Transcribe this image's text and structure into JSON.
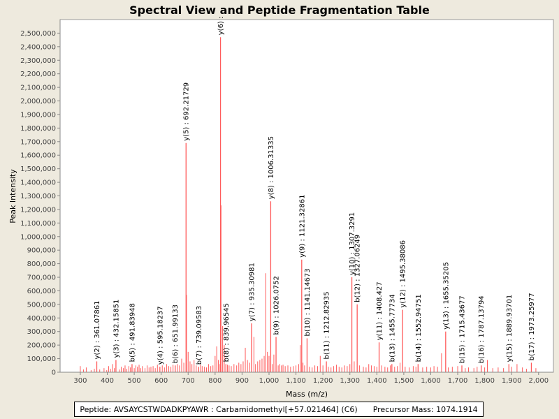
{
  "chart_data": {
    "type": "bar",
    "title": "Spectral View and Peptide Fragmentation Table",
    "xlabel": "Mass (m/z)",
    "ylabel": "Peak Intensity",
    "xlim": [
      225,
      2055
    ],
    "ylim": [
      0,
      2600000
    ],
    "x_ticks": [
      "300",
      "400",
      "500",
      "600",
      "700",
      "800",
      "900",
      "1,000",
      "1,100",
      "1,200",
      "1,300",
      "1,400",
      "1,500",
      "1,600",
      "1,700",
      "1,800",
      "1,900",
      "2,000"
    ],
    "x_tick_values": [
      300,
      400,
      500,
      600,
      700,
      800,
      900,
      1000,
      1100,
      1200,
      1300,
      1400,
      1500,
      1600,
      1700,
      1800,
      1900,
      2000
    ],
    "y_ticks": [
      "0",
      "100,000",
      "200,000",
      "300,000",
      "400,000",
      "500,000",
      "600,000",
      "700,000",
      "800,000",
      "900,000",
      "1,000,000",
      "1,100,000",
      "1,200,000",
      "1,300,000",
      "1,400,000",
      "1,500,000",
      "1,600,000",
      "1,700,000",
      "1,800,000",
      "1,900,000",
      "2,000,000",
      "2,100,000",
      "2,200,000",
      "2,300,000",
      "2,400,000",
      "2,500,000"
    ],
    "y_tick_values": [
      0,
      100000,
      200000,
      300000,
      400000,
      500000,
      600000,
      700000,
      800000,
      900000,
      1000000,
      1100000,
      1200000,
      1300000,
      1400000,
      1500000,
      1600000,
      1700000,
      1800000,
      1900000,
      2000000,
      2100000,
      2200000,
      2300000,
      2400000,
      2500000
    ],
    "grid": false,
    "peak_color": "#ff5a5a",
    "annotated_peaks": [
      {
        "label": "y(2) : 361.07861",
        "x": 361.08,
        "y": 80000
      },
      {
        "label": "y(3) : 432.15851",
        "x": 432.16,
        "y": 90000
      },
      {
        "label": "b(5) : 491.83948",
        "x": 491.84,
        "y": 60000
      },
      {
        "label": "y(4) : 595.18237",
        "x": 595.18,
        "y": 40000
      },
      {
        "label": "b(6) : 651.99133",
        "x": 651.99,
        "y": 50000
      },
      {
        "label": "y(5) : 692.21729",
        "x": 692.22,
        "y": 1690000
      },
      {
        "label": "b(7) : 739.09583",
        "x": 739.1,
        "y": 40000
      },
      {
        "label": "y(6) : ",
        "x": 820.0,
        "y": 2470000
      },
      {
        "label": "b(8) : 839.96545",
        "x": 839.97,
        "y": 60000
      },
      {
        "label": "y(7) : 935.30981",
        "x": 935.31,
        "y": 360000
      },
      {
        "label": "y(8) : 1006.31335",
        "x": 1006.31,
        "y": 1260000
      },
      {
        "label": "b(9) : 1026.0752",
        "x": 1026.08,
        "y": 260000
      },
      {
        "label": "y(9) : 1121.32861",
        "x": 1121.33,
        "y": 830000
      },
      {
        "label": "b(10) : 1141.14673",
        "x": 1141.15,
        "y": 250000
      },
      {
        "label": "b(11) : 1212.82935",
        "x": 1212.83,
        "y": 80000
      },
      {
        "label": "y(10) : 1307.3291",
        "x": 1307.33,
        "y": 700000
      },
      {
        "label": "b(12) : 1327.06249",
        "x": 1327.06,
        "y": 500000
      },
      {
        "label": "y(11) : 1408.427",
        "x": 1408.43,
        "y": 220000
      },
      {
        "label": "b(13) : 1455.77734",
        "x": 1455.78,
        "y": 60000
      },
      {
        "label": "y(12) : 1495.38086",
        "x": 1495.38,
        "y": 460000
      },
      {
        "label": "b(14) : 1552.94751",
        "x": 1552.95,
        "y": 60000
      },
      {
        "label": "y(13) : 1655.35205",
        "x": 1655.35,
        "y": 300000
      },
      {
        "label": "b(15) : 1715.43677",
        "x": 1715.44,
        "y": 50000
      },
      {
        "label": "b(16) : 1787.13794",
        "x": 1787.14,
        "y": 50000
      },
      {
        "label": "y(15) : 1889.93701",
        "x": 1889.94,
        "y": 60000
      },
      {
        "label": "b(17) : 1973.25977",
        "x": 1973.26,
        "y": 70000
      }
    ],
    "other_peaks": [
      [
        300,
        45000
      ],
      [
        312,
        20000
      ],
      [
        322,
        35000
      ],
      [
        340,
        15000
      ],
      [
        352,
        25000
      ],
      [
        372,
        20000
      ],
      [
        388,
        30000
      ],
      [
        398,
        15000
      ],
      [
        405,
        45000
      ],
      [
        412,
        25000
      ],
      [
        420,
        60000
      ],
      [
        426,
        30000
      ],
      [
        445,
        20000
      ],
      [
        452,
        40000
      ],
      [
        460,
        30000
      ],
      [
        466,
        50000
      ],
      [
        472,
        25000
      ],
      [
        480,
        45000
      ],
      [
        486,
        35000
      ],
      [
        500,
        30000
      ],
      [
        506,
        50000
      ],
      [
        512,
        40000
      ],
      [
        518,
        55000
      ],
      [
        524,
        30000
      ],
      [
        530,
        45000
      ],
      [
        540,
        30000
      ],
      [
        548,
        50000
      ],
      [
        555,
        35000
      ],
      [
        562,
        40000
      ],
      [
        570,
        45000
      ],
      [
        578,
        30000
      ],
      [
        586,
        55000
      ],
      [
        604,
        50000
      ],
      [
        612,
        35000
      ],
      [
        620,
        60000
      ],
      [
        628,
        45000
      ],
      [
        636,
        40000
      ],
      [
        644,
        55000
      ],
      [
        660,
        60000
      ],
      [
        668,
        50000
      ],
      [
        676,
        100000
      ],
      [
        684,
        70000
      ],
      [
        694,
        570000
      ],
      [
        700,
        150000
      ],
      [
        707,
        80000
      ],
      [
        714,
        60000
      ],
      [
        722,
        90000
      ],
      [
        730,
        50000
      ],
      [
        746,
        55000
      ],
      [
        752,
        45000
      ],
      [
        760,
        40000
      ],
      [
        768,
        35000
      ],
      [
        776,
        60000
      ],
      [
        784,
        45000
      ],
      [
        792,
        50000
      ],
      [
        800,
        120000
      ],
      [
        806,
        190000
      ],
      [
        812,
        90000
      ],
      [
        818,
        60000
      ],
      [
        822,
        1230000
      ],
      [
        828,
        340000
      ],
      [
        834,
        200000
      ],
      [
        846,
        55000
      ],
      [
        852,
        50000
      ],
      [
        860,
        45000
      ],
      [
        870,
        60000
      ],
      [
        880,
        50000
      ],
      [
        888,
        70000
      ],
      [
        896,
        60000
      ],
      [
        904,
        80000
      ],
      [
        912,
        180000
      ],
      [
        920,
        90000
      ],
      [
        928,
        70000
      ],
      [
        944,
        260000
      ],
      [
        950,
        60000
      ],
      [
        958,
        80000
      ],
      [
        966,
        90000
      ],
      [
        974,
        100000
      ],
      [
        982,
        120000
      ],
      [
        988,
        730000
      ],
      [
        994,
        150000
      ],
      [
        1000,
        120000
      ],
      [
        1012,
        60000
      ],
      [
        1018,
        130000
      ],
      [
        1034,
        50000
      ],
      [
        1040,
        60000
      ],
      [
        1046,
        50000
      ],
      [
        1052,
        55000
      ],
      [
        1060,
        45000
      ],
      [
        1070,
        50000
      ],
      [
        1080,
        40000
      ],
      [
        1090,
        45000
      ],
      [
        1100,
        50000
      ],
      [
        1110,
        60000
      ],
      [
        1116,
        200000
      ],
      [
        1126,
        70000
      ],
      [
        1132,
        50000
      ],
      [
        1150,
        40000
      ],
      [
        1160,
        35000
      ],
      [
        1170,
        50000
      ],
      [
        1180,
        45000
      ],
      [
        1190,
        120000
      ],
      [
        1200,
        50000
      ],
      [
        1220,
        40000
      ],
      [
        1230,
        35000
      ],
      [
        1240,
        45000
      ],
      [
        1250,
        55000
      ],
      [
        1260,
        40000
      ],
      [
        1270,
        35000
      ],
      [
        1280,
        50000
      ],
      [
        1290,
        45000
      ],
      [
        1300,
        60000
      ],
      [
        1316,
        80000
      ],
      [
        1336,
        50000
      ],
      [
        1350,
        40000
      ],
      [
        1360,
        35000
      ],
      [
        1370,
        60000
      ],
      [
        1380,
        50000
      ],
      [
        1390,
        45000
      ],
      [
        1400,
        40000
      ],
      [
        1418,
        50000
      ],
      [
        1430,
        40000
      ],
      [
        1440,
        35000
      ],
      [
        1450,
        50000
      ],
      [
        1466,
        40000
      ],
      [
        1476,
        45000
      ],
      [
        1486,
        70000
      ],
      [
        1505,
        40000
      ],
      [
        1520,
        35000
      ],
      [
        1535,
        45000
      ],
      [
        1545,
        40000
      ],
      [
        1570,
        35000
      ],
      [
        1585,
        40000
      ],
      [
        1600,
        35000
      ],
      [
        1612,
        45000
      ],
      [
        1625,
        40000
      ],
      [
        1640,
        140000
      ],
      [
        1665,
        35000
      ],
      [
        1680,
        40000
      ],
      [
        1700,
        45000
      ],
      [
        1728,
        30000
      ],
      [
        1740,
        35000
      ],
      [
        1760,
        30000
      ],
      [
        1772,
        40000
      ],
      [
        1800,
        35000
      ],
      [
        1810,
        90000
      ],
      [
        1830,
        30000
      ],
      [
        1850,
        35000
      ],
      [
        1870,
        30000
      ],
      [
        1900,
        40000
      ],
      [
        1920,
        60000
      ],
      [
        1940,
        35000
      ],
      [
        1955,
        25000
      ],
      [
        1990,
        30000
      ]
    ]
  },
  "footer": {
    "peptide": "Peptide: AVSAYCSTWDADKPYAWR : Carbamidomethyl[+57.021464] (C6)",
    "precursor": "Precursor Mass: 1074.1914"
  }
}
